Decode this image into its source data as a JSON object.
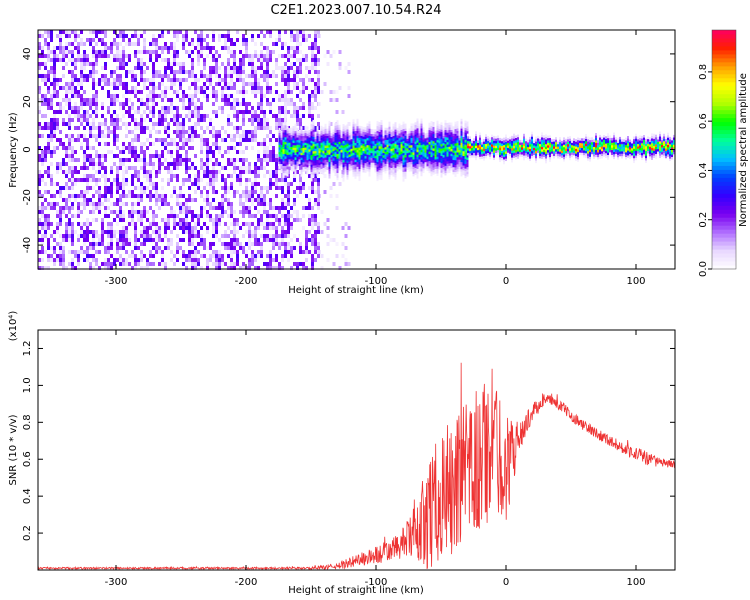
{
  "title": "C2E1.2023.007.10.54.R24",
  "colorbar": {
    "label": "Normalized spectral amplitude",
    "range": [
      0,
      0.97
    ],
    "ticks": [
      "0.0",
      "0.2",
      "0.4",
      "0.6",
      "0.8"
    ],
    "tick_values": [
      0.0,
      0.2,
      0.4,
      0.6,
      0.8
    ]
  },
  "chart_data": [
    {
      "type": "heatmap",
      "title": "",
      "xlabel": "Height of straight line (km)",
      "ylabel": "Frequency (Hz)",
      "xlim": [
        -360,
        130
      ],
      "ylim": [
        -50,
        50
      ],
      "x_ticks": [
        "-300",
        "-200",
        "-100",
        "0",
        "100"
      ],
      "x_tick_values": [
        -300,
        -200,
        -100,
        0,
        100
      ],
      "y_ticks": [
        "-40",
        "-20",
        "0",
        "20",
        "40"
      ],
      "y_tick_values": [
        -40,
        -20,
        0,
        20,
        40
      ],
      "colormap": [
        "#ffffff",
        "#e8d8ff",
        "#b070ff",
        "#7a00f0",
        "#3300ff",
        "#0040ff",
        "#00c0ff",
        "#00ff99",
        "#00ff00",
        "#b0ff00",
        "#ffff00",
        "#ffa000",
        "#ff2000",
        "#ff0060"
      ],
      "regions": [
        {
          "x_range": [
            -360,
            -145
          ],
          "freq_range": [
            -50,
            50
          ],
          "amplitude": 0.1,
          "pattern": "noise"
        },
        {
          "x_range": [
            -145,
            -120
          ],
          "freq_range": [
            -50,
            50
          ],
          "amplitude": 0.05,
          "pattern": "sparse-noise"
        },
        {
          "x_range": [
            -175,
            -30
          ],
          "freq_center": 0,
          "half_width_hz": 7,
          "amplitude": 0.55,
          "pattern": "band"
        },
        {
          "x_range": [
            -30,
            130
          ],
          "freq_center": 1,
          "half_width_hz": 3,
          "amplitude": 0.75,
          "pattern": "band"
        }
      ]
    },
    {
      "type": "line",
      "title": "",
      "xlabel": "Height of straight line (km)",
      "ylabel": "SNR (10 * v/v)",
      "y_multiplier": "(x10⁴)",
      "xlim": [
        -360,
        130
      ],
      "ylim": [
        0,
        1.3
      ],
      "x_ticks": [
        "-300",
        "-200",
        "-100",
        "0",
        "100"
      ],
      "x_tick_values": [
        -300,
        -200,
        -100,
        0,
        100
      ],
      "y_ticks": [
        "0.2",
        "0.4",
        "0.6",
        "0.8",
        "1.0",
        "1.2"
      ],
      "y_tick_values": [
        0.2,
        0.4,
        0.6,
        0.8,
        1.0,
        1.2
      ],
      "color": "#ee3333",
      "series": [
        {
          "x": [
            -360,
            -300,
            -250,
            -200,
            -150,
            -130,
            -120,
            -110,
            -100,
            -90,
            -80,
            -70,
            -60,
            -50,
            -40,
            -30,
            -20,
            -10,
            0,
            10,
            20,
            30,
            40,
            50,
            60,
            70,
            80,
            90,
            100,
            110,
            120,
            130
          ],
          "values": [
            0.01,
            0.01,
            0.01,
            0.01,
            0.01,
            0.02,
            0.04,
            0.06,
            0.08,
            0.1,
            0.14,
            0.2,
            0.3,
            0.4,
            0.45,
            0.5,
            0.6,
            0.7,
            0.55,
            0.72,
            0.85,
            0.93,
            0.9,
            0.84,
            0.78,
            0.74,
            0.7,
            0.66,
            0.63,
            0.6,
            0.58,
            0.57
          ],
          "noise": [
            0.005,
            0.005,
            0.005,
            0.005,
            0.006,
            0.015,
            0.03,
            0.04,
            0.05,
            0.06,
            0.08,
            0.15,
            0.3,
            0.35,
            0.4,
            0.4,
            0.45,
            0.4,
            0.3,
            0.08,
            0.05,
            0.03,
            0.03,
            0.03,
            0.03,
            0.03,
            0.03,
            0.03,
            0.04,
            0.04,
            0.02,
            0.02
          ]
        }
      ]
    }
  ]
}
